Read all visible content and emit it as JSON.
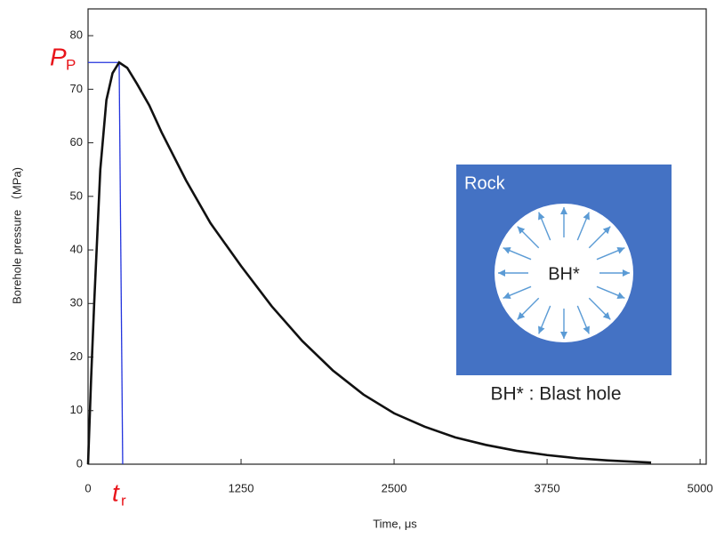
{
  "chart_data": {
    "type": "line",
    "x_label": "Time, μs",
    "y_label": "Borehole pressure （MPa)",
    "xlim": [
      0,
      5050
    ],
    "ylim": [
      0,
      85
    ],
    "xticks": [
      0,
      1250,
      2500,
      3750,
      5000
    ],
    "yticks": [
      0,
      10,
      20,
      30,
      40,
      50,
      60,
      70,
      80
    ],
    "series": [
      {
        "color": "#111111",
        "x": [
          0,
          25,
          50,
          100,
          150,
          200,
          254,
          320,
          400,
          500,
          600,
          800,
          1000,
          1250,
          1500,
          1750,
          2000,
          2250,
          2500,
          2750,
          3000,
          3250,
          3500,
          3750,
          4000,
          4250,
          4600
        ],
        "values": [
          0,
          16,
          30,
          55,
          68,
          73,
          75,
          74,
          71,
          67,
          62,
          53,
          45,
          37,
          29.5,
          23,
          17.5,
          13,
          9.5,
          7,
          5,
          3.6,
          2.5,
          1.7,
          1.1,
          0.7,
          0.3
        ]
      }
    ],
    "reference_lines": {
      "color": "#2233dd",
      "peak": [
        254,
        75
      ],
      "rise_end": [
        283,
        0
      ]
    },
    "annotations": [
      {
        "text": "P",
        "sub": "P"
      },
      {
        "text": "t",
        "sub": "r"
      }
    ],
    "inset": {
      "region_label": "Rock",
      "hole_label": "BH*",
      "caption": "BH* : Blast hole"
    }
  }
}
